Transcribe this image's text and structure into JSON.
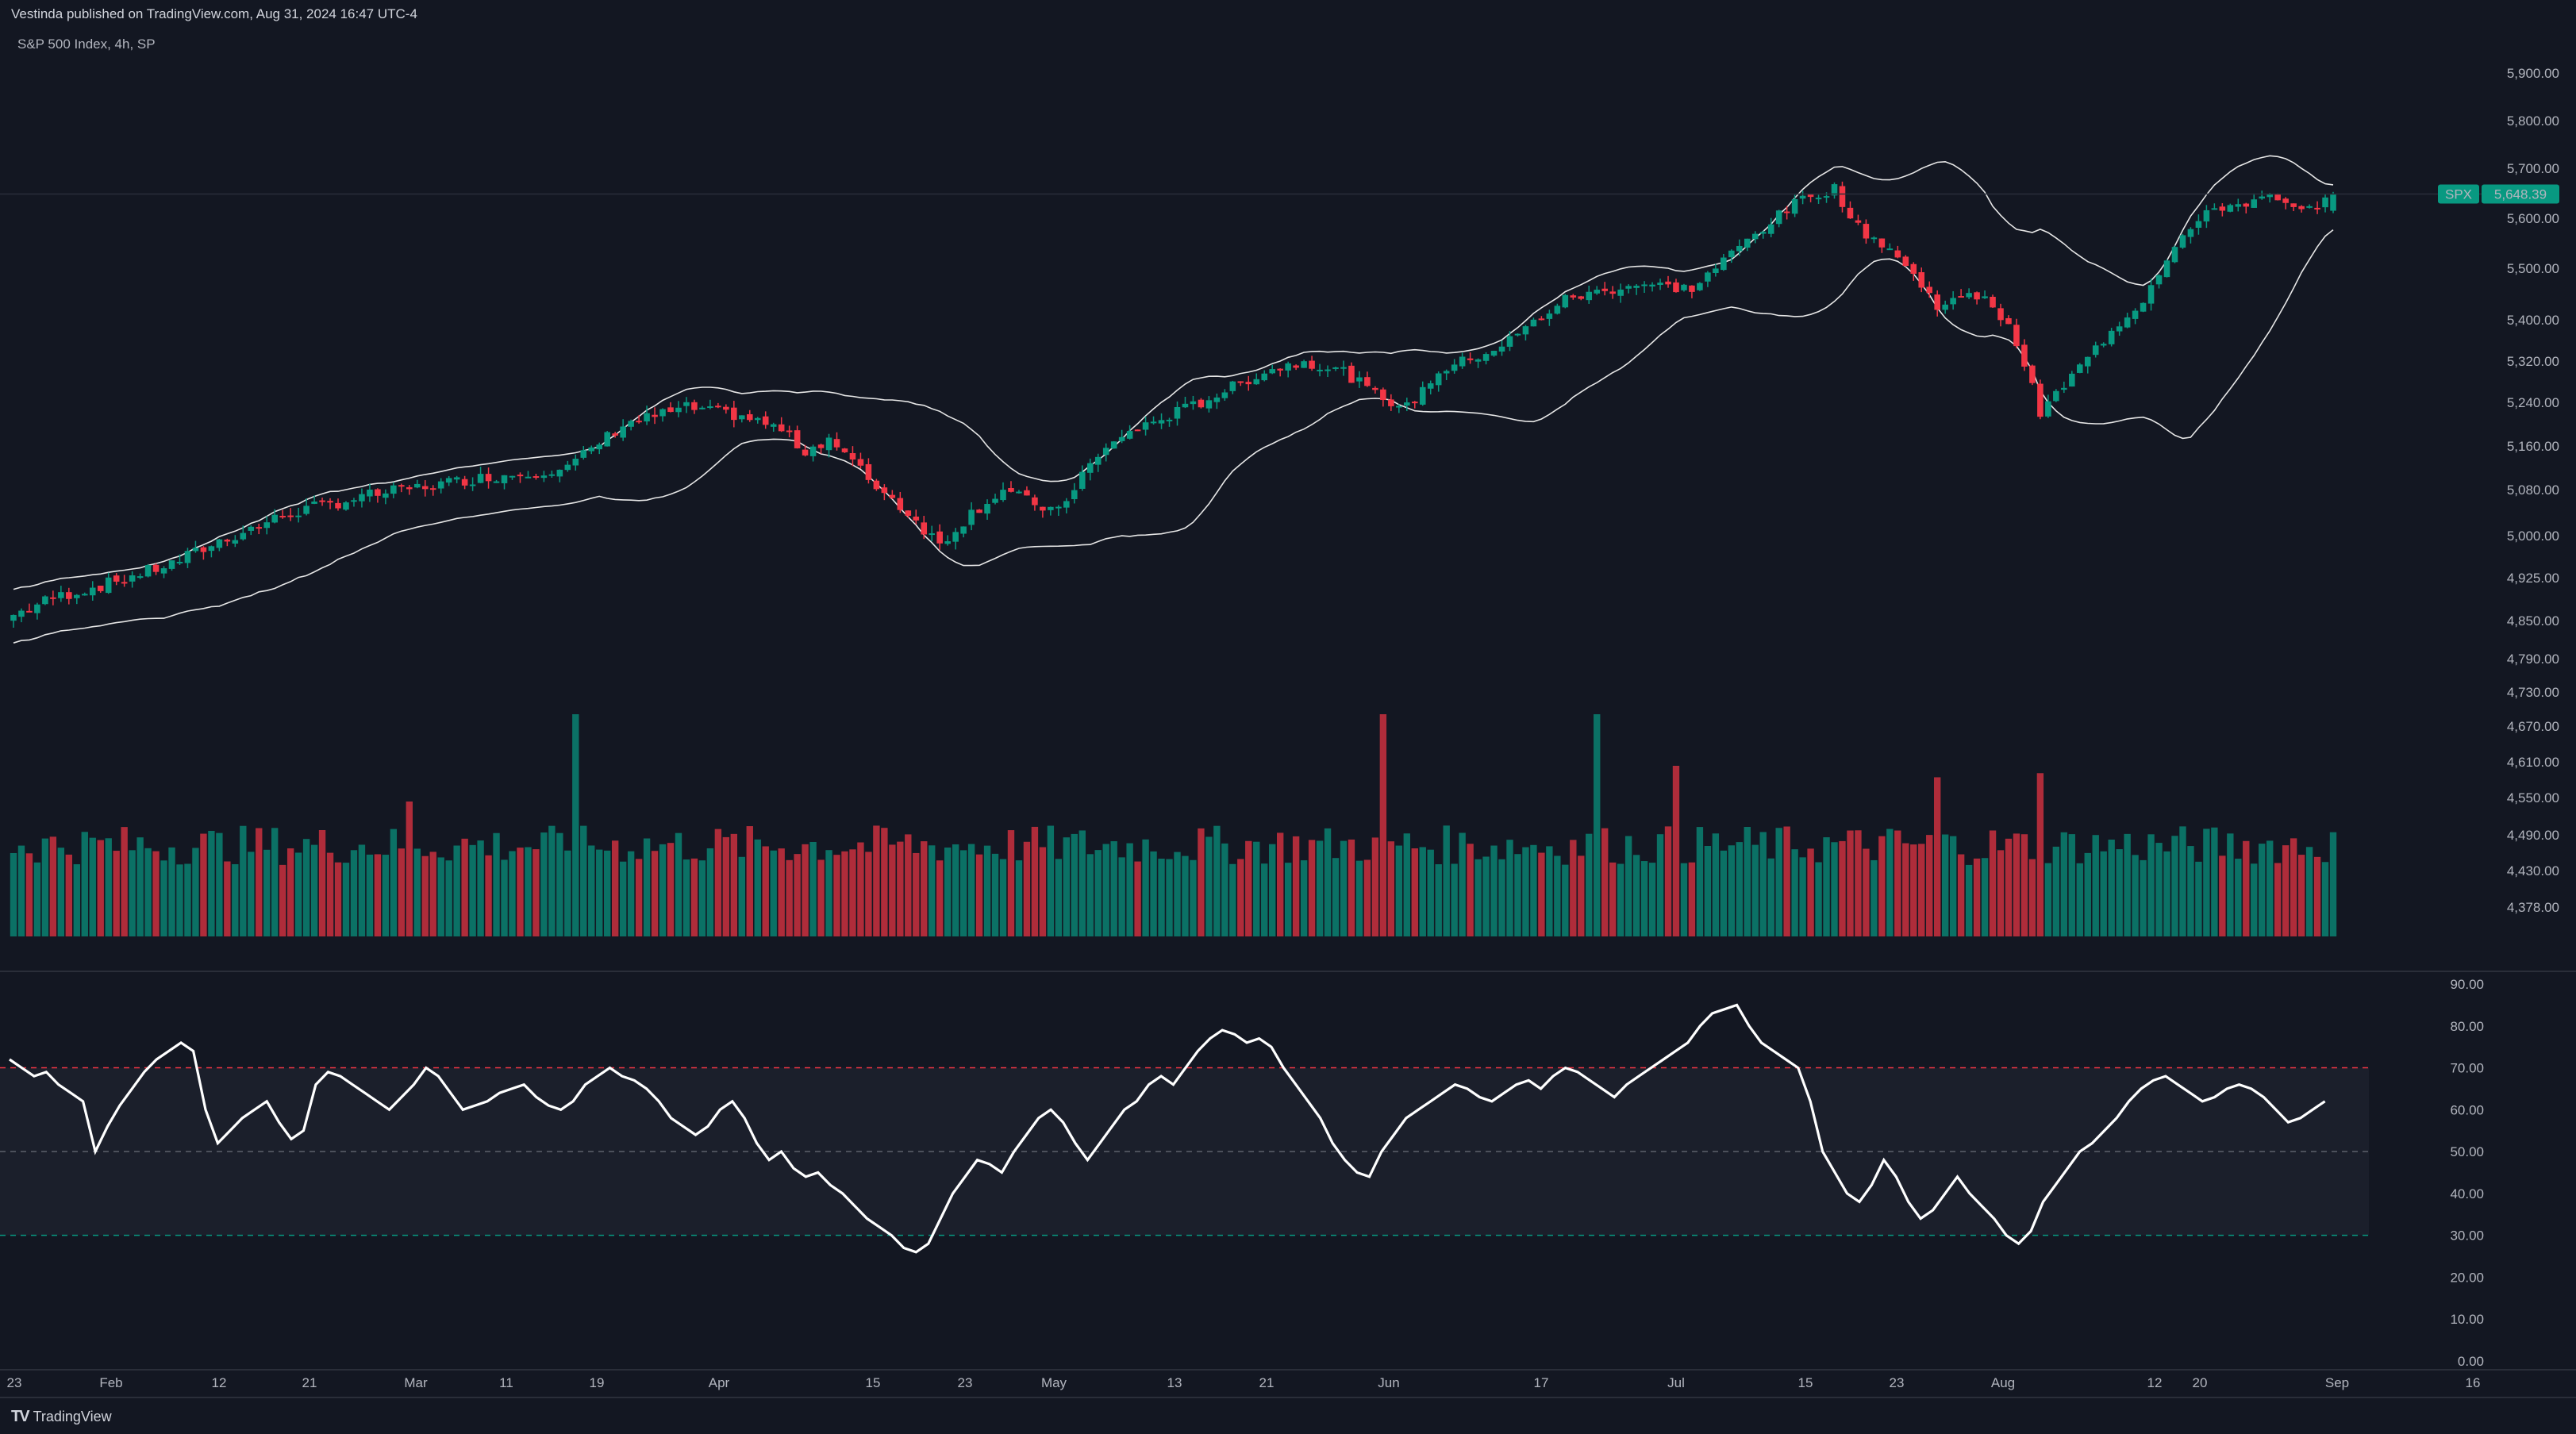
{
  "header": {
    "published": "Vestinda published on TradingView.com, Aug 31, 2024 16:47 UTC-4",
    "symbol": "S&P 500 Index, 4h, SP"
  },
  "footer": {
    "brand": "TradingView"
  },
  "colors": {
    "background": "#131722",
    "up": "#089981",
    "down": "#f23645",
    "band": "#e6e6e6",
    "rsi": "#ffffff",
    "rsi_upper": "#f23645",
    "rsi_lower": "#089981",
    "badge": "#089981"
  },
  "price_badge": {
    "symbol": "SPX",
    "value": "5,648.39"
  },
  "chart_data": [
    {
      "type": "candlestick",
      "title": "S&P 500 Index, 4h, SP",
      "price_ticks": [
        "5,900.00",
        "5,800.00",
        "5,700.00",
        "5,600.00",
        "5,500.00",
        "5,400.00",
        "5,320.00",
        "5,240.00",
        "5,160.00",
        "5,080.00",
        "5,000.00",
        "4,925.00",
        "4,850.00",
        "4,790.00",
        "4,730.00",
        "4,670.00",
        "4,610.00",
        "4,550.00",
        "4,490.00",
        "4,430.00",
        "4,378.00"
      ],
      "date_ticks": [
        "23",
        "Feb",
        "12",
        "21",
        "Mar",
        "11",
        "19",
        "Apr",
        "15",
        "23",
        "May",
        "13",
        "21",
        "Jun",
        "17",
        "Jul",
        "15",
        "23",
        "Aug",
        "12",
        "20",
        "Sep",
        "16"
      ],
      "close_anchors": [
        {
          "x": 0,
          "y": 4860
        },
        {
          "x": 5,
          "y": 4890
        },
        {
          "x": 12,
          "y": 4915
        },
        {
          "x": 20,
          "y": 4950
        },
        {
          "x": 26,
          "y": 4990
        },
        {
          "x": 35,
          "y": 5040
        },
        {
          "x": 45,
          "y": 5070
        },
        {
          "x": 58,
          "y": 5100
        },
        {
          "x": 70,
          "y": 5120
        },
        {
          "x": 77,
          "y": 5200
        },
        {
          "x": 85,
          "y": 5230
        },
        {
          "x": 92,
          "y": 5215
        },
        {
          "x": 97,
          "y": 5190
        },
        {
          "x": 100,
          "y": 5150
        },
        {
          "x": 103,
          "y": 5175
        },
        {
          "x": 108,
          "y": 5100
        },
        {
          "x": 113,
          "y": 5040
        },
        {
          "x": 117,
          "y": 4985
        },
        {
          "x": 121,
          "y": 5040
        },
        {
          "x": 125,
          "y": 5080
        },
        {
          "x": 128,
          "y": 5060
        },
        {
          "x": 132,
          "y": 5040
        },
        {
          "x": 135,
          "y": 5110
        },
        {
          "x": 140,
          "y": 5180
        },
        {
          "x": 150,
          "y": 5240
        },
        {
          "x": 158,
          "y": 5300
        },
        {
          "x": 163,
          "y": 5320
        },
        {
          "x": 168,
          "y": 5300
        },
        {
          "x": 172,
          "y": 5255
        },
        {
          "x": 176,
          "y": 5230
        },
        {
          "x": 180,
          "y": 5300
        },
        {
          "x": 188,
          "y": 5350
        },
        {
          "x": 196,
          "y": 5440
        },
        {
          "x": 205,
          "y": 5470
        },
        {
          "x": 212,
          "y": 5460
        },
        {
          "x": 220,
          "y": 5570
        },
        {
          "x": 226,
          "y": 5640
        },
        {
          "x": 230,
          "y": 5660
        },
        {
          "x": 233,
          "y": 5580
        },
        {
          "x": 237,
          "y": 5540
        },
        {
          "x": 243,
          "y": 5430
        },
        {
          "x": 249,
          "y": 5450
        },
        {
          "x": 253,
          "y": 5360
        },
        {
          "x": 256,
          "y": 5220
        },
        {
          "x": 260,
          "y": 5290
        },
        {
          "x": 265,
          "y": 5380
        },
        {
          "x": 269,
          "y": 5440
        },
        {
          "x": 273,
          "y": 5550
        },
        {
          "x": 278,
          "y": 5620
        },
        {
          "x": 285,
          "y": 5640
        },
        {
          "x": 289,
          "y": 5610
        },
        {
          "x": 293,
          "y": 5648
        }
      ],
      "volume_present": true,
      "bollinger_bands": true
    },
    {
      "type": "line",
      "title": "RSI",
      "y_ticks": [
        "90.00",
        "80.00",
        "70.00",
        "60.00",
        "50.00",
        "40.00",
        "30.00",
        "20.00",
        "10.00",
        "0.00"
      ],
      "ylim": [
        0,
        90
      ],
      "levels": [
        70,
        50,
        30
      ],
      "values": [
        72,
        70,
        68,
        69,
        66,
        64,
        62,
        50,
        56,
        61,
        65,
        69,
        72,
        74,
        76,
        74,
        60,
        52,
        55,
        58,
        60,
        62,
        57,
        53,
        55,
        66,
        69,
        68,
        66,
        64,
        62,
        60,
        63,
        66,
        70,
        68,
        64,
        60,
        61,
        62,
        64,
        65,
        66,
        63,
        61,
        60,
        62,
        66,
        68,
        70,
        68,
        67,
        65,
        62,
        58,
        56,
        54,
        56,
        60,
        62,
        58,
        52,
        48,
        50,
        46,
        44,
        45,
        42,
        40,
        37,
        34,
        32,
        30,
        27,
        26,
        28,
        34,
        40,
        44,
        48,
        47,
        45,
        50,
        54,
        58,
        60,
        57,
        52,
        48,
        52,
        56,
        60,
        62,
        66,
        68,
        66,
        70,
        74,
        77,
        79,
        78,
        76,
        77,
        75,
        70,
        66,
        62,
        58,
        52,
        48,
        45,
        44,
        50,
        54,
        58,
        60,
        62,
        64,
        66,
        65,
        63,
        62,
        64,
        66,
        67,
        65,
        68,
        70,
        69,
        67,
        65,
        63,
        66,
        68,
        70,
        72,
        74,
        76,
        80,
        83,
        84,
        85,
        80,
        76,
        74,
        72,
        70,
        62,
        50,
        45,
        40,
        38,
        42,
        48,
        44,
        38,
        34,
        36,
        40,
        44,
        40,
        37,
        34,
        30,
        28,
        31,
        38,
        42,
        46,
        50,
        52,
        55,
        58,
        62,
        65,
        67,
        68,
        66,
        64,
        62,
        63,
        65,
        66,
        65,
        63,
        60,
        57,
        58,
        60,
        62
      ]
    }
  ]
}
